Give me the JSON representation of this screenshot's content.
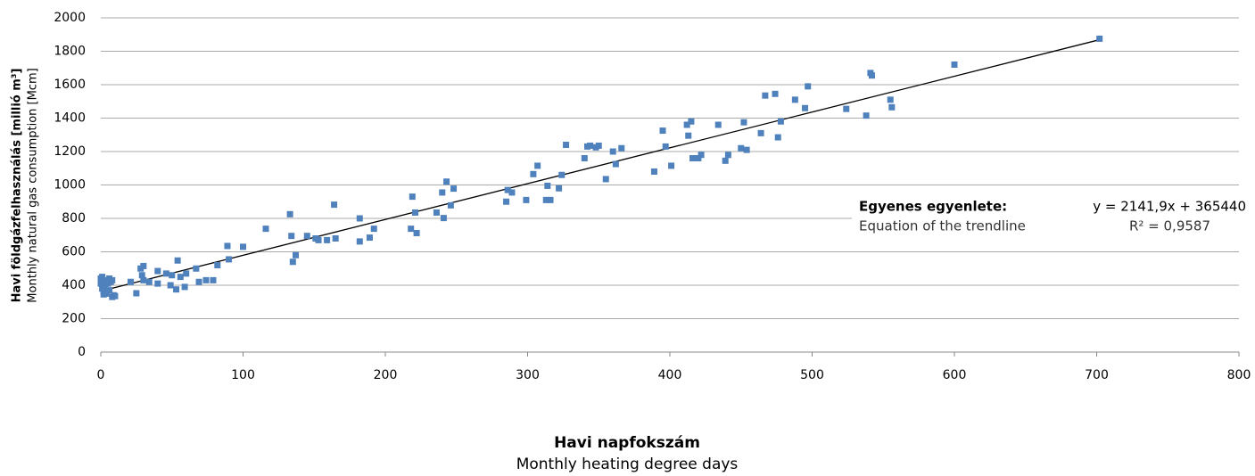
{
  "chart_data": {
    "type": "scatter",
    "x_label": "Havi napfokszám",
    "x_label_sub": "Monthly heating degree days",
    "y_label": "Havi földgázfelhasználás [millió m³]",
    "y_label_sub": "Monthly natural gas consumption [Mcm]",
    "annotation": {
      "title": "Egyenes egyenlete:",
      "subtitle": "Equation of the trendline",
      "equation": "y = 2141,9x + 365440",
      "r2": "R² = 0,9587"
    },
    "xlim": [
      0,
      800
    ],
    "ylim": [
      0,
      2000
    ],
    "xticks": [
      0,
      100,
      200,
      300,
      400,
      500,
      600,
      700,
      800
    ],
    "yticks": [
      0,
      200,
      400,
      600,
      800,
      1000,
      1200,
      1400,
      1600,
      1800,
      2000
    ],
    "grid": true,
    "trendline": {
      "x": [
        0,
        702
      ],
      "y": [
        365,
        1869
      ],
      "color": "#000000"
    },
    "series": [
      {
        "color": "#4f81bd",
        "x": [
          0,
          1,
          2,
          3,
          1,
          2,
          4,
          0,
          5,
          6,
          7,
          8,
          9,
          10,
          3,
          6,
          5,
          8,
          2,
          21,
          25,
          28,
          30,
          29,
          30,
          34,
          40,
          40,
          46,
          49,
          50,
          53,
          54,
          56,
          59,
          60,
          67,
          69,
          74,
          79,
          82,
          89,
          90,
          100,
          116,
          133,
          134,
          135,
          137,
          145,
          151,
          153,
          159,
          164,
          165,
          182,
          182,
          189,
          192,
          218,
          219,
          221,
          222,
          236,
          240,
          241,
          243,
          246,
          248,
          285,
          286,
          289,
          299,
          304,
          307,
          313,
          314,
          316,
          322,
          324,
          327,
          340,
          342,
          344,
          348,
          350,
          355,
          360,
          362,
          366,
          389,
          395,
          397,
          401,
          412,
          413,
          415,
          416,
          420,
          422,
          434,
          439,
          441,
          450,
          452,
          454,
          464,
          467,
          474,
          476,
          478,
          488,
          495,
          497,
          524,
          538,
          541,
          542,
          555,
          556,
          600,
          702
        ],
        "values": [
          440,
          450,
          420,
          400,
          380,
          360,
          350,
          410,
          430,
          440,
          420,
          330,
          340,
          335,
          390,
          370,
          410,
          430,
          345,
          420,
          352,
          500,
          515,
          460,
          430,
          420,
          485,
          410,
          470,
          400,
          460,
          375,
          548,
          450,
          390,
          470,
          500,
          420,
          430,
          430,
          520,
          635,
          555,
          630,
          738,
          825,
          695,
          540,
          580,
          695,
          680,
          670,
          670,
          882,
          680,
          800,
          662,
          685,
          738,
          738,
          930,
          835,
          712,
          835,
          955,
          802,
          1020,
          878,
          978,
          900,
          970,
          955,
          910,
          1065,
          1115,
          910,
          995,
          910,
          980,
          1060,
          1240,
          1160,
          1230,
          1235,
          1225,
          1235,
          1035,
          1200,
          1125,
          1220,
          1080,
          1325,
          1230,
          1115,
          1360,
          1295,
          1380,
          1160,
          1160,
          1180,
          1360,
          1145,
          1180,
          1220,
          1375,
          1210,
          1310,
          1535,
          1545,
          1285,
          1380,
          1510,
          1460,
          1590,
          1455,
          1415,
          1670,
          1655,
          1510,
          1465,
          1720,
          1875
        ]
      }
    ]
  }
}
